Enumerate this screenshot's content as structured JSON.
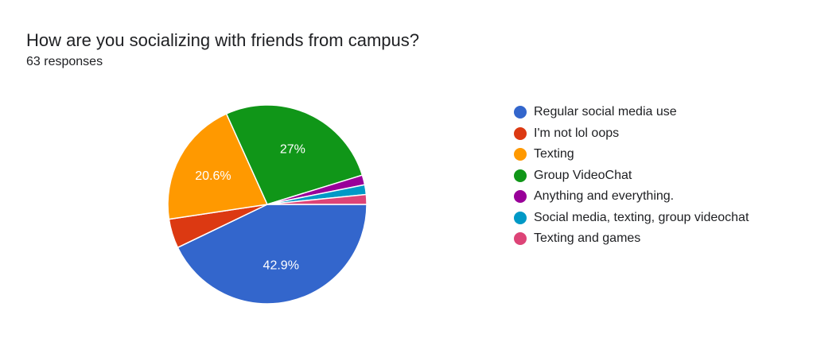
{
  "header": {
    "title": "How are you socializing with friends from campus?",
    "subtitle": "63 responses"
  },
  "chart_data": {
    "type": "pie",
    "categories": [
      "Regular social media use",
      "I'm not lol oops",
      "Texting",
      "Group VideoChat",
      "Anything and everything.",
      "Social media, texting, group videochat",
      "Texting and games"
    ],
    "values": [
      27,
      3,
      13,
      17,
      1,
      1,
      1
    ],
    "percent_labels": [
      "42.9%",
      "",
      "20.6%",
      "27%",
      "",
      "",
      ""
    ],
    "colors": [
      "#3366cc",
      "#dc3912",
      "#ff9900",
      "#109618",
      "#990099",
      "#0099c6",
      "#dd4477"
    ],
    "legend_position": "right"
  }
}
